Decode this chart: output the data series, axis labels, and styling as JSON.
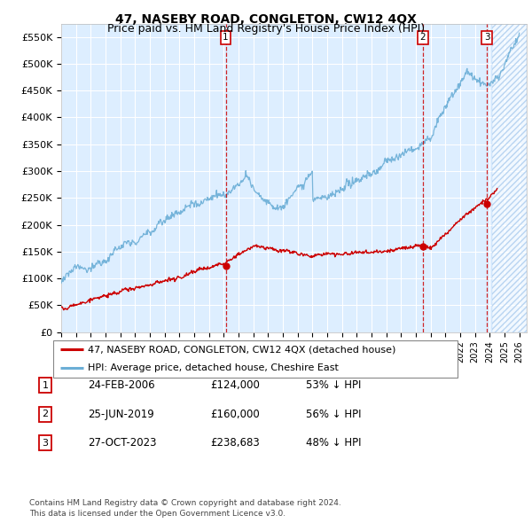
{
  "title": "47, NASEBY ROAD, CONGLETON, CW12 4QX",
  "subtitle": "Price paid vs. HM Land Registry's House Price Index (HPI)",
  "ylim": [
    0,
    575000
  ],
  "yticks": [
    0,
    50000,
    100000,
    150000,
    200000,
    250000,
    300000,
    350000,
    400000,
    450000,
    500000,
    550000
  ],
  "ytick_labels": [
    "£0",
    "£50K",
    "£100K",
    "£150K",
    "£200K",
    "£250K",
    "£300K",
    "£350K",
    "£400K",
    "£450K",
    "£500K",
    "£550K"
  ],
  "xlim_start": 1995.0,
  "xlim_end": 2026.5,
  "hpi_color": "#6baed6",
  "price_color": "#cc0000",
  "vline_color": "#cc0000",
  "background_color": "#ddeeff",
  "grid_color": "#ffffff",
  "transactions": [
    {
      "date_num": 2006.13,
      "price": 124000,
      "label": "1"
    },
    {
      "date_num": 2019.48,
      "price": 160000,
      "label": "2"
    },
    {
      "date_num": 2023.82,
      "price": 238683,
      "label": "3"
    }
  ],
  "legend_entries": [
    {
      "label": "47, NASEBY ROAD, CONGLETON, CW12 4QX (detached house)",
      "color": "#cc0000"
    },
    {
      "label": "HPI: Average price, detached house, Cheshire East",
      "color": "#6baed6"
    }
  ],
  "table_rows": [
    {
      "num": "1",
      "date": "24-FEB-2006",
      "price": "£124,000",
      "hpi": "53% ↓ HPI"
    },
    {
      "num": "2",
      "date": "25-JUN-2019",
      "price": "£160,000",
      "hpi": "56% ↓ HPI"
    },
    {
      "num": "3",
      "date": "27-OCT-2023",
      "price": "£238,683",
      "hpi": "48% ↓ HPI"
    }
  ],
  "footer": "Contains HM Land Registry data © Crown copyright and database right 2024.\nThis data is licensed under the Open Government Licence v3.0.",
  "title_fontsize": 10,
  "subtitle_fontsize": 9,
  "hatch_color": "#aaccee"
}
